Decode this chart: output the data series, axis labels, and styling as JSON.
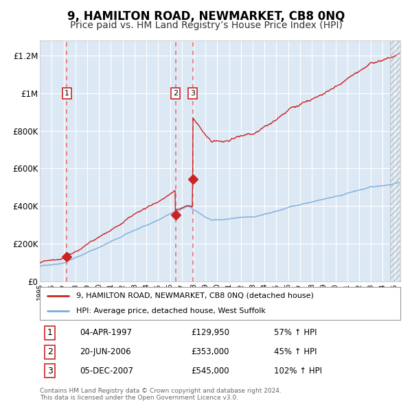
{
  "title": "9, HAMILTON ROAD, NEWMARKET, CB8 0NQ",
  "subtitle": "Price paid vs. HM Land Registry’s House Price Index (HPI)",
  "title_fontsize": 12,
  "subtitle_fontsize": 10,
  "ylabel_ticks": [
    "£0",
    "£200K",
    "£400K",
    "£600K",
    "£800K",
    "£1M",
    "£1.2M"
  ],
  "ytick_values": [
    0,
    200000,
    400000,
    600000,
    800000,
    1000000,
    1200000
  ],
  "ylim": [
    0,
    1280000
  ],
  "xlim_start": 1995.0,
  "xlim_end": 2025.5,
  "bg_color": "#dce9f5",
  "sale_dates": [
    1997.27,
    2006.47,
    2007.92
  ],
  "sale_prices": [
    129950,
    353000,
    545000
  ],
  "sale_labels": [
    "1",
    "2",
    "3"
  ],
  "legend_line1": "9, HAMILTON ROAD, NEWMARKET, CB8 0NQ (detached house)",
  "legend_line2": "HPI: Average price, detached house, West Suffolk",
  "table_rows": [
    [
      "1",
      "04-APR-1997",
      "£129,950",
      "57% ↑ HPI"
    ],
    [
      "2",
      "20-JUN-2006",
      "£353,000",
      "45% ↑ HPI"
    ],
    [
      "3",
      "05-DEC-2007",
      "£545,000",
      "102% ↑ HPI"
    ]
  ],
  "footer_text": "Contains HM Land Registry data © Crown copyright and database right 2024.\nThis data is licensed under the Open Government Licence v3.0.",
  "red_color": "#cc2222",
  "blue_color": "#7aabdb",
  "dashed_color": "#ee5555"
}
